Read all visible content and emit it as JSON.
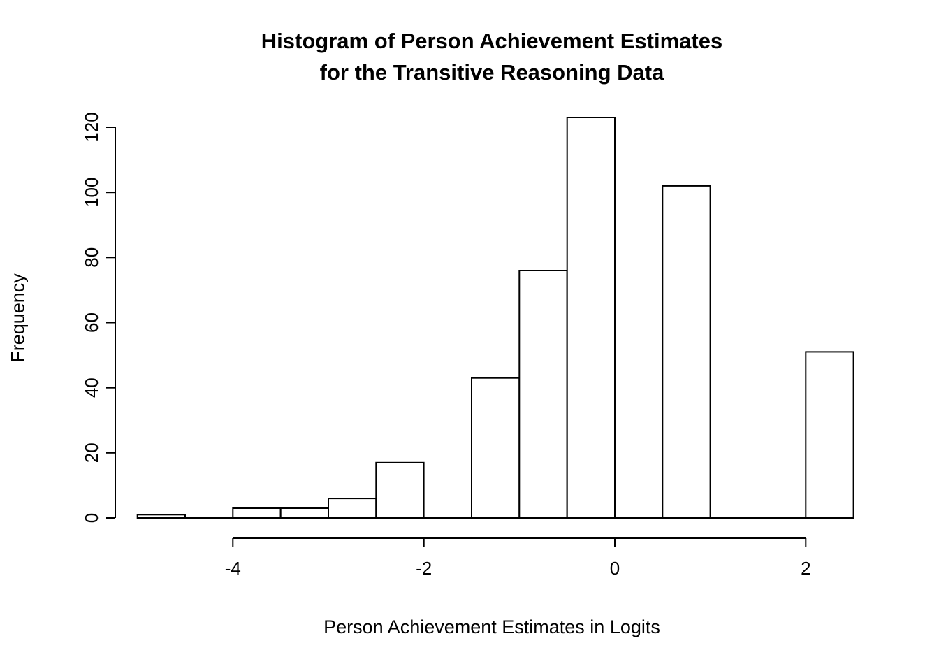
{
  "title": {
    "line1": "Histogram of Person Achievement Estimates",
    "line2": "for the Transitive Reasoning Data"
  },
  "chart_data": {
    "type": "bar",
    "subtype": "histogram",
    "title": "Histogram of Person Achievement Estimates for the Transitive Reasoning Data",
    "xlabel": "Person Achievement Estimates in Logits",
    "ylabel": "Frequency",
    "bin_width": 0.5,
    "bin_edges": [
      -5,
      -4.5,
      -4,
      -3.5,
      -3,
      -2.5,
      -2,
      -1.5,
      -1,
      -0.5,
      0,
      0.5,
      1,
      1.5,
      2,
      2.5
    ],
    "counts": [
      1,
      0,
      3,
      3,
      6,
      17,
      0,
      43,
      76,
      123,
      0,
      102,
      0,
      0,
      51
    ],
    "x_ticks": [
      "-4",
      "-2",
      "0",
      "2"
    ],
    "x_tick_values": [
      -4,
      -2,
      0,
      2
    ],
    "y_ticks": [
      "0",
      "20",
      "40",
      "60",
      "80",
      "100",
      "120"
    ],
    "y_tick_values": [
      0,
      20,
      40,
      60,
      80,
      100,
      120
    ],
    "xlim": [
      -5,
      2.5
    ],
    "ylim": [
      0,
      123
    ],
    "grid": false,
    "legend": false,
    "bar_fill": "#ffffff",
    "bar_stroke": "#000000",
    "axis_color": "#000000",
    "background": "#ffffff"
  }
}
